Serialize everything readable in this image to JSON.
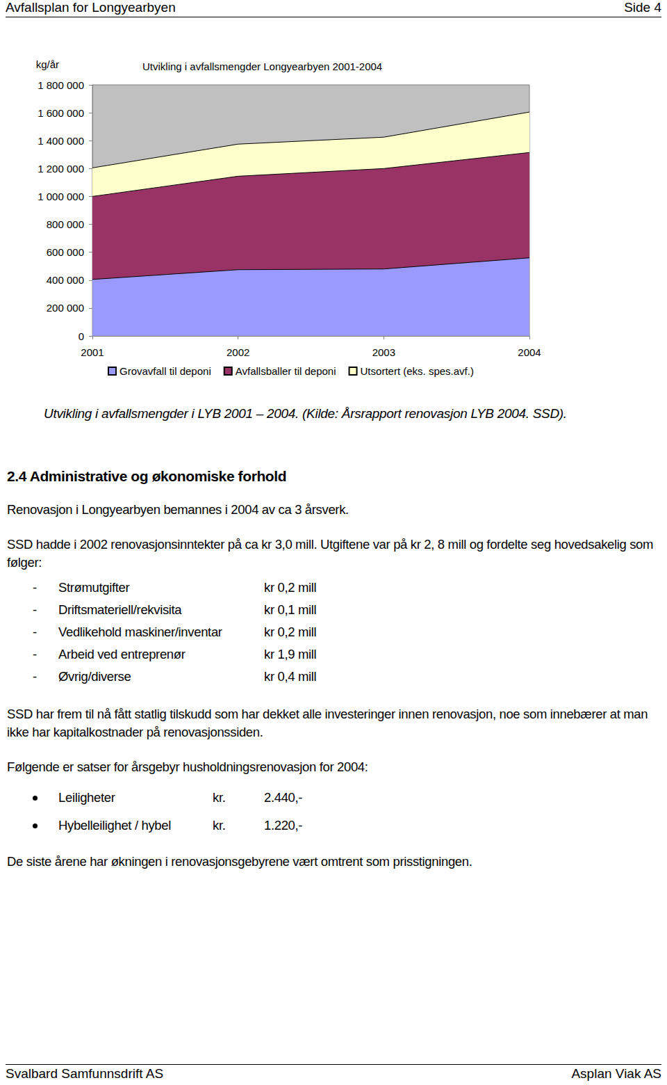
{
  "header": {
    "left": "Avfallsplan for Longyearbyen",
    "right": "Side 4"
  },
  "chart_data": {
    "type": "area",
    "title": "Utvikling i avfallsmengder Longyearbyen 2001-2004",
    "y_label": "kg/år",
    "categories": [
      "2001",
      "2002",
      "2003",
      "2004"
    ],
    "series": [
      {
        "name": "Grovavfall til deponi",
        "color": "#9999ff",
        "values": [
          405000,
          475000,
          480000,
          560000
        ]
      },
      {
        "name": "Avfallsballer til deponi",
        "color": "#993366",
        "values": [
          595000,
          670000,
          720000,
          755000
        ]
      },
      {
        "name": "Utsortert (eks. spes.avf.)",
        "color": "#ffffcc",
        "values": [
          205000,
          230000,
          225000,
          290000
        ]
      }
    ],
    "stacked": true,
    "ylim": [
      0,
      1800000
    ],
    "yticks": [
      0,
      {
        "value": 200000,
        "label": "200 000"
      },
      {
        "value": 400000,
        "label": "400 000"
      },
      {
        "value": 600000,
        "label": "600 000"
      },
      {
        "value": 800000,
        "label": "800 000"
      },
      {
        "value": 1000000,
        "label": "1 000 000"
      },
      {
        "value": 1200000,
        "label": "1 200 000"
      },
      {
        "value": 1400000,
        "label": "1 400 000"
      },
      {
        "value": 1600000,
        "label": "1 600 000"
      },
      {
        "value": 1800000,
        "label": "1 800 000"
      }
    ],
    "grid": false,
    "legend": "bottom"
  },
  "caption": "Utvikling i avfallsmengder i LYB 2001 – 2004. (Kilde: Årsrapport renovasjon LYB 2004. SSD).",
  "section": {
    "heading": "2.4 Administrative og økonomiske forhold",
    "paragraphs": [
      "Renovasjon i Longyearbyen bemannes i 2004 av ca 3 årsverk.",
      "SSD hadde i 2002 renovasjonsinntekter på ca kr 3,0 mill. Utgiftene var på kr 2, 8 mill og fordelte seg hovedsakelig som følger:"
    ],
    "cost_dash": "-",
    "cost_items": [
      {
        "label": "Strømutgifter",
        "amount": "kr 0,2 mill"
      },
      {
        "label": "Driftsmateriell/rekvisita",
        "amount": "kr 0,1 mill"
      },
      {
        "label": "Vedlikehold maskiner/inventar",
        "amount": "kr 0,2 mill"
      },
      {
        "label": "Arbeid ved entreprenør",
        "amount": "kr 1,9 mill"
      },
      {
        "label": "Øvrig/diverse",
        "amount": "kr 0,4 mill"
      }
    ],
    "after_costs": "SSD har frem til nå fått statlig tilskudd som har dekket alle investeringer innen renovasjon, noe som innebærer at man ikke har kapitalkostnader på renovasjonssiden.",
    "fees_intro": "Følgende er satser for årsgebyr husholdningsrenovasjon for 2004:",
    "fees": [
      {
        "label": "Leiligheter",
        "unit": "kr.",
        "amount": "2.440,-"
      },
      {
        "label": "Hybelleilighet / hybel",
        "unit": "kr.",
        "amount": "1.220,-"
      }
    ],
    "closing": "De siste årene har økningen i renovasjonsgebyrene vært omtrent som prisstigningen."
  },
  "footer": {
    "left": "Svalbard Samfunnsdrift AS",
    "right": "Asplan Viak AS"
  }
}
